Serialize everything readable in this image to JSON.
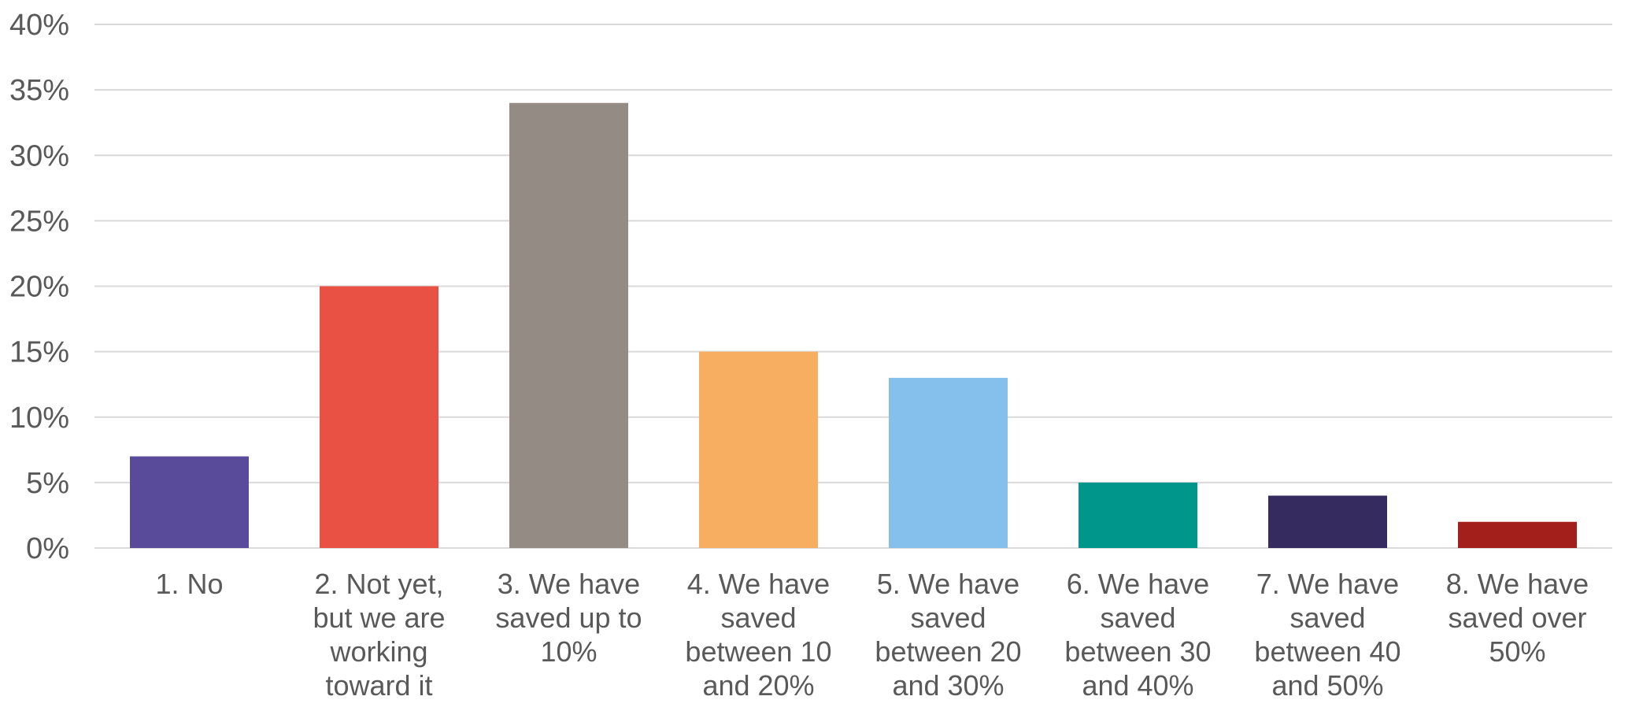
{
  "chart_data": {
    "type": "bar",
    "title": "",
    "xlabel": "",
    "ylabel": "",
    "ylim": [
      0,
      40
    ],
    "yticks": [
      "0%",
      "5%",
      "10%",
      "15%",
      "20%",
      "25%",
      "30%",
      "35%",
      "40%"
    ],
    "ytick_values": [
      0,
      5,
      10,
      15,
      20,
      25,
      30,
      35,
      40
    ],
    "grid": true,
    "legend": "none",
    "categories": [
      [
        "1.  No"
      ],
      [
        "2.  Not yet,",
        "but we are",
        "working",
        "toward it"
      ],
      [
        "3.  We have",
        "saved up to",
        "10%"
      ],
      [
        "4.  We have",
        "saved",
        "between 10",
        "and 20%"
      ],
      [
        "5.  We have",
        "saved",
        "between 20",
        "and 30%"
      ],
      [
        "6.  We have",
        "saved",
        "between 30",
        "and 40%"
      ],
      [
        "7.  We have",
        "saved",
        "between 40",
        "and 50%"
      ],
      [
        "8.  We have",
        "saved over",
        "50%"
      ]
    ],
    "values": [
      7,
      20,
      34,
      15,
      13,
      5,
      4,
      2
    ],
    "colors": [
      "#5a4a9a",
      "#e85144",
      "#948b85",
      "#f7ae61",
      "#84c0eb",
      "#00968b",
      "#362b5e",
      "#a31f1c"
    ]
  }
}
